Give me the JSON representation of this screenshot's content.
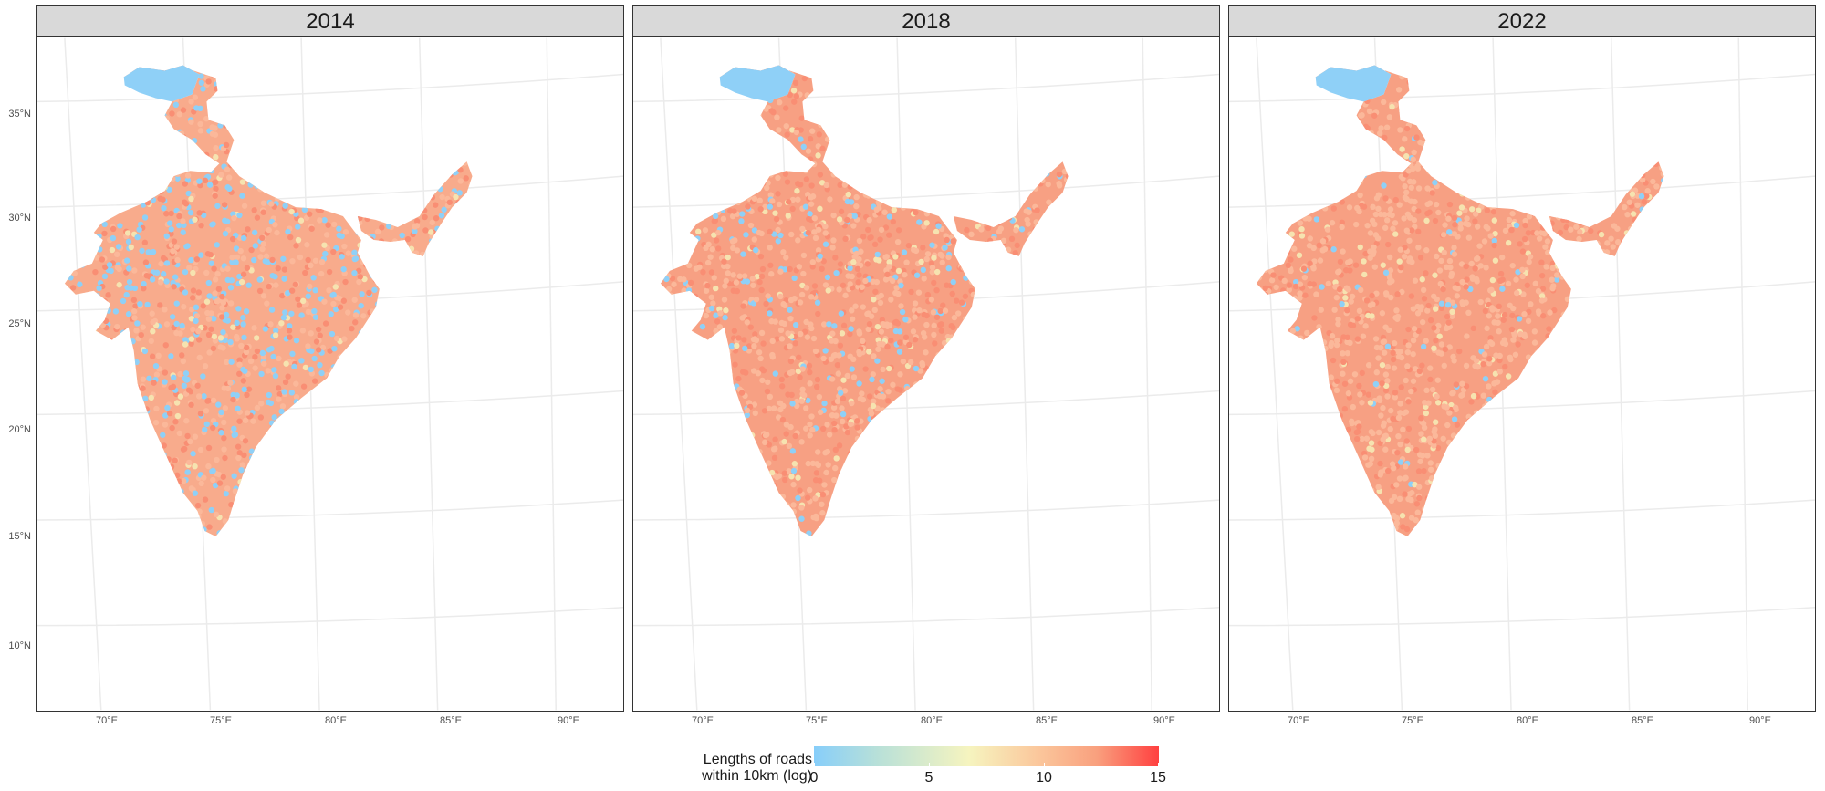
{
  "facets": [
    {
      "label": "2014",
      "blue_share": 0.32
    },
    {
      "label": "2018",
      "blue_share": 0.13
    },
    {
      "label": "2022",
      "blue_share": 0.05
    }
  ],
  "y_axis_labels": [
    "35°N",
    "30°N",
    "25°N",
    "20°N",
    "15°N",
    "10°N"
  ],
  "x_axis_labels": [
    "70°E",
    "75°E",
    "80°E",
    "85°E",
    "90°E"
  ],
  "legend": {
    "title_line1": "Lengths of roads",
    "title_line2": "within 10km (log)",
    "ticks": [
      "0",
      "5",
      "10",
      "15"
    ],
    "range": [
      0,
      15
    ],
    "colors": {
      "low": "#87cefa",
      "mid": "#f6f4bf",
      "high": "#ff4040"
    }
  }
}
